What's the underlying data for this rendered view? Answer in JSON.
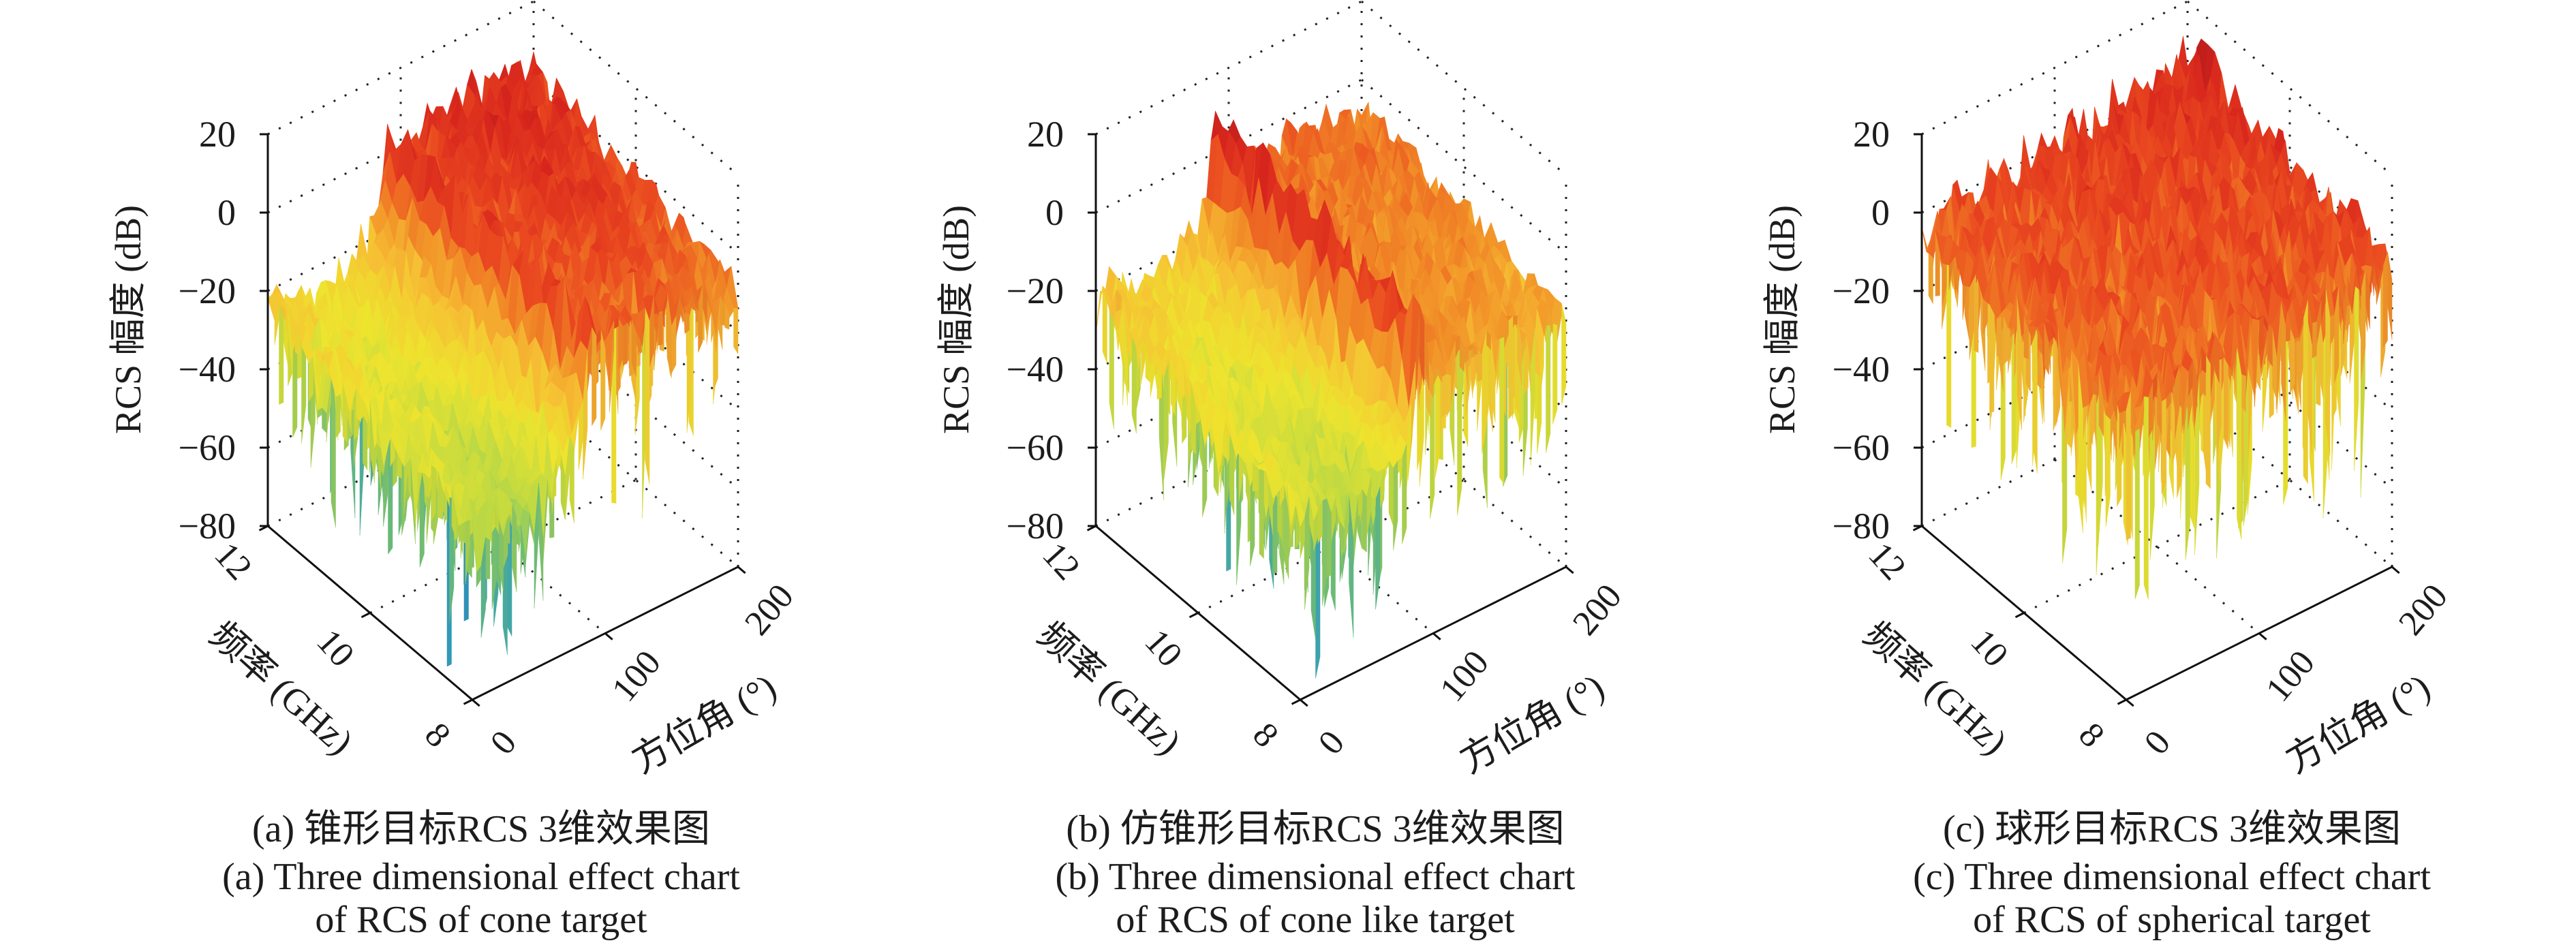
{
  "colormap": [
    {
      "z": -78,
      "color": "#1f64b4"
    },
    {
      "z": -62,
      "color": "#35a2bd"
    },
    {
      "z": -50,
      "color": "#6fc07a"
    },
    {
      "z": -40,
      "color": "#b9d845"
    },
    {
      "z": -30,
      "color": "#eee42e"
    },
    {
      "z": -20,
      "color": "#f6c034"
    },
    {
      "z": -10,
      "color": "#f18a27"
    },
    {
      "z": -2,
      "color": "#ea4a20"
    },
    {
      "z": 6,
      "color": "#d8261d"
    },
    {
      "z": 14,
      "color": "#a8151b"
    }
  ],
  "chart_data": [
    {
      "type": "surface",
      "caption": [
        "(a) 锥形目标RCS 3维效果图",
        "(a) Three dimensional effect chart",
        "of RCS of cone target"
      ],
      "zlabel": "RCS 幅度 (dB)",
      "xlabel": "频率 (GHz)",
      "ylabel": "方位角 (°)",
      "zlim": [
        -80,
        20
      ],
      "flim": [
        8,
        12
      ],
      "azlim": [
        0,
        200
      ],
      "grid": true,
      "z_ticks": [
        {
          "value": 20,
          "label": "20"
        },
        {
          "value": 0,
          "label": "0"
        },
        {
          "value": -20,
          "label": "−20"
        },
        {
          "value": -40,
          "label": "−40"
        },
        {
          "value": -60,
          "label": "−60"
        },
        {
          "value": -80,
          "label": "−80"
        }
      ],
      "f_ticks": [
        {
          "value": 12,
          "label": "12"
        },
        {
          "value": 10,
          "label": "10"
        },
        {
          "value": 8,
          "label": "8"
        }
      ],
      "az_ticks": [
        {
          "value": 0,
          "label": "0"
        },
        {
          "value": 100,
          "label": "100"
        },
        {
          "value": 200,
          "label": "200"
        }
      ],
      "surface_estimate": {
        "azimuth": [
          0,
          20,
          40,
          60,
          80,
          90,
          100,
          120,
          140,
          160,
          180,
          200
        ],
        "frequency": [
          12,
          10,
          8
        ],
        "rcs_db": [
          [
            -22,
            -25,
            -28,
            -24,
            -12,
            6,
            0,
            4,
            6,
            6,
            5,
            4
          ],
          [
            -30,
            -32,
            -34,
            -30,
            -18,
            4,
            -2,
            0,
            2,
            2,
            0,
            -2
          ],
          [
            -35,
            -38,
            -40,
            -36,
            -24,
            2,
            -6,
            -6,
            -4,
            -6,
            -8,
            -10
          ]
        ]
      }
    },
    {
      "type": "surface",
      "caption": [
        "(b) 仿锥形目标RCS 3维效果图",
        "(b) Three dimensional effect chart",
        "of RCS of cone like target"
      ],
      "zlabel": "RCS 幅度 (dB)",
      "xlabel": "频率 (GHz)",
      "ylabel": "方位角 (°)",
      "zlim": [
        -80,
        20
      ],
      "flim": [
        8,
        12
      ],
      "azlim": [
        0,
        200
      ],
      "grid": true,
      "z_ticks": [
        {
          "value": 20,
          "label": "20"
        },
        {
          "value": 0,
          "label": "0"
        },
        {
          "value": -20,
          "label": "−20"
        },
        {
          "value": -40,
          "label": "−40"
        },
        {
          "value": -60,
          "label": "−60"
        },
        {
          "value": -80,
          "label": "−80"
        }
      ],
      "f_ticks": [
        {
          "value": 12,
          "label": "12"
        },
        {
          "value": 10,
          "label": "10"
        },
        {
          "value": 8,
          "label": "8"
        }
      ],
      "az_ticks": [
        {
          "value": 0,
          "label": "0"
        },
        {
          "value": 100,
          "label": "100"
        },
        {
          "value": 200,
          "label": "200"
        }
      ],
      "surface_estimate": {
        "azimuth": [
          0,
          20,
          40,
          60,
          80,
          90,
          100,
          120,
          140,
          160,
          180,
          200
        ],
        "frequency": [
          12,
          10,
          8
        ],
        "rcs_db": [
          [
            -18,
            -22,
            -25,
            -22,
            -14,
            12,
            -5,
            -5,
            -5,
            -6,
            -6,
            -7
          ],
          [
            -26,
            -30,
            -32,
            -30,
            -20,
            8,
            -8,
            -8,
            -9,
            -9,
            -9,
            -11
          ],
          [
            -32,
            -36,
            -38,
            -36,
            -26,
            3,
            -11,
            -12,
            -13,
            -13,
            -15,
            -17
          ]
        ]
      }
    },
    {
      "type": "surface",
      "caption": [
        "(c) 球形目标RCS 3维效果图",
        "(c) Three dimensional effect chart",
        "of RCS of spherical target"
      ],
      "zlabel": "RCS 幅度 (dB)",
      "xlabel": "频率 (GHz)",
      "ylabel": "方位角 (°)",
      "zlim": [
        -80,
        20
      ],
      "flim": [
        8,
        12
      ],
      "azlim": [
        0,
        200
      ],
      "grid": true,
      "z_ticks": [
        {
          "value": 20,
          "label": "20"
        },
        {
          "value": 0,
          "label": "0"
        },
        {
          "value": -20,
          "label": "−20"
        },
        {
          "value": -40,
          "label": "−40"
        },
        {
          "value": -60,
          "label": "−60"
        },
        {
          "value": -80,
          "label": "−80"
        }
      ],
      "f_ticks": [
        {
          "value": 12,
          "label": "12"
        },
        {
          "value": 10,
          "label": "10"
        },
        {
          "value": 8,
          "label": "8"
        }
      ],
      "az_ticks": [
        {
          "value": 0,
          "label": "0"
        },
        {
          "value": 100,
          "label": "100"
        },
        {
          "value": 200,
          "label": "200"
        }
      ],
      "surface_estimate": {
        "azimuth": [
          0,
          20,
          40,
          60,
          80,
          90,
          100,
          120,
          140,
          160,
          180,
          200
        ],
        "frequency": [
          12,
          10,
          8
        ],
        "rcs_db": [
          [
            -4,
            -3,
            -2,
            -1,
            0,
            1,
            1,
            2,
            3,
            4,
            6,
            9
          ],
          [
            -5,
            -4,
            -3,
            -3,
            -2,
            -2,
            -1,
            -1,
            0,
            0,
            1,
            2
          ],
          [
            -7,
            -6,
            -6,
            -5,
            -5,
            -4,
            -4,
            -3,
            -3,
            -3,
            -2,
            -2
          ]
        ]
      }
    }
  ]
}
